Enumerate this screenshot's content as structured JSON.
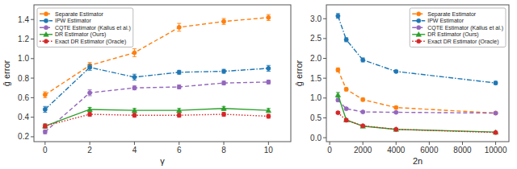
{
  "chart_data": [
    {
      "type": "line",
      "x_label": "γ",
      "y_label": "ĝ error",
      "xlim": [
        -0.5,
        11
      ],
      "ylim": [
        0.15,
        1.55
      ],
      "xticks": [
        0,
        2,
        4,
        6,
        8,
        10
      ],
      "yticks": [
        0.2,
        0.4,
        0.6,
        0.8,
        {
          "value": 1.0,
          "label": "1.0"
        },
        1.2,
        1.4
      ],
      "grid": false,
      "legend": "upper left",
      "x": [
        0,
        2,
        4,
        6,
        8,
        10
      ],
      "series": [
        {
          "name": "Separate Estimator",
          "color": "#ff7f0e",
          "line_style": "dashed",
          "marker": "circle",
          "values": [
            0.63,
            0.93,
            1.06,
            1.32,
            1.38,
            1.42
          ],
          "errors": [
            0.03,
            0.03,
            0.04,
            0.04,
            0.03,
            0.03
          ]
        },
        {
          "name": "IPW Estimator",
          "color": "#1f77b4",
          "line_style": "dashdot",
          "marker": "circle",
          "values": [
            0.48,
            0.91,
            0.81,
            0.86,
            0.87,
            0.9
          ],
          "errors": [
            0.03,
            0.03,
            0.03,
            0.02,
            0.02,
            0.03
          ]
        },
        {
          "name": "CQTE Estimator (Kallus et al.)",
          "color": "#9467bd",
          "line_style": "dashed",
          "marker": "circle",
          "values": [
            0.25,
            0.65,
            0.7,
            0.71,
            0.75,
            0.76
          ],
          "errors": [
            0.02,
            0.03,
            0.02,
            0.02,
            0.02,
            0.02
          ]
        },
        {
          "name": "DR Estimator (Ours)",
          "color": "#2ca02c",
          "line_style": "solid",
          "marker": "triangle",
          "values": [
            0.31,
            0.48,
            0.47,
            0.47,
            0.49,
            0.47
          ],
          "errors": [
            0.02,
            0.02,
            0.02,
            0.02,
            0.02,
            0.02
          ]
        },
        {
          "name": "Exact DR Estimator (Oracle)",
          "color": "#d62728",
          "line_style": "dotted",
          "marker": "circle",
          "values": [
            0.31,
            0.43,
            0.42,
            0.42,
            0.43,
            0.41
          ],
          "errors": [
            0.02,
            0.02,
            0.02,
            0.02,
            0.02,
            0.02
          ]
        }
      ]
    },
    {
      "type": "line",
      "x_label": "2n",
      "y_label": "ĝ error",
      "xlim": [
        -200,
        10800
      ],
      "ylim": [
        -0.1,
        3.35
      ],
      "xticks": [
        0,
        2000,
        4000,
        6000,
        8000,
        10000
      ],
      "yticks": [
        {
          "value": 0.0,
          "label": "0.0"
        },
        0.5,
        {
          "value": 1.0,
          "label": "1.0"
        },
        1.5,
        {
          "value": 2.0,
          "label": "2.0"
        },
        2.5,
        {
          "value": 3.0,
          "label": "3.0"
        }
      ],
      "grid": false,
      "legend": "upper right",
      "x": [
        500,
        1000,
        2000,
        4000,
        10000
      ],
      "series": [
        {
          "name": "Separate Estimator",
          "color": "#ff7f0e",
          "line_style": "dashed",
          "marker": "circle",
          "values": [
            1.71,
            1.22,
            0.96,
            0.76,
            0.62
          ],
          "errors": [
            0.05,
            0.04,
            0.04,
            0.03,
            0.02
          ]
        },
        {
          "name": "IPW Estimator",
          "color": "#1f77b4",
          "line_style": "dashdot",
          "marker": "circle",
          "values": [
            3.07,
            2.47,
            1.96,
            1.67,
            1.38
          ],
          "errors": [
            0.06,
            0.05,
            0.05,
            0.03,
            0.04
          ]
        },
        {
          "name": "CQTE Estimator (Kallus et al.)",
          "color": "#9467bd",
          "line_style": "dashed",
          "marker": "circle",
          "values": [
            0.95,
            0.73,
            0.65,
            0.64,
            0.62
          ],
          "errors": [
            0.04,
            0.03,
            0.02,
            0.02,
            0.02
          ]
        },
        {
          "name": "DR Estimator (Ours)",
          "color": "#2ca02c",
          "line_style": "solid",
          "marker": "triangle",
          "values": [
            1.08,
            0.45,
            0.29,
            0.21,
            0.14
          ],
          "errors": [
            0.06,
            0.03,
            0.02,
            0.02,
            0.01
          ]
        },
        {
          "name": "Exact DR Estimator (Oracle)",
          "color": "#d62728",
          "line_style": "dotted",
          "marker": "circle",
          "values": [
            0.63,
            0.44,
            0.3,
            0.21,
            0.13
          ],
          "errors": [
            0.03,
            0.03,
            0.02,
            0.02,
            0.01
          ]
        }
      ]
    }
  ]
}
